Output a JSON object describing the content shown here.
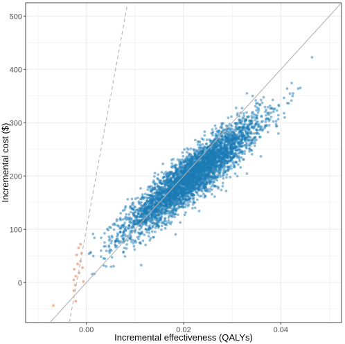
{
  "chart_data": {
    "type": "scatter",
    "title": "",
    "xlabel": "Incremental effectiveness (QALYs)",
    "ylabel": "Incremental cost ($)",
    "xlim": [
      -0.0125,
      0.0525
    ],
    "ylim": [
      -75,
      525
    ],
    "x_ticks": [
      0.0,
      0.02,
      0.04
    ],
    "x_tick_labels": [
      "0.00",
      "0.02",
      "0.04"
    ],
    "y_ticks": [
      0,
      100,
      200,
      300,
      400,
      500
    ],
    "y_tick_labels": [
      "0",
      "100",
      "200",
      "300",
      "400",
      "500"
    ],
    "grid": true,
    "legend": "none",
    "colors": {
      "main_points": "#1b7bb5",
      "dominated_points": "#f4a582",
      "solid_line": "#b3b3b3",
      "dashed_line": "#b3b3b3",
      "grid": "#ebebeb"
    },
    "point_cloud": {
      "count": 4200,
      "x_mean": 0.0218,
      "x_sd": 0.0068,
      "y_intercept": 45,
      "y_slope": 7100,
      "y_noise_sd": 22
    },
    "dominated_points": [
      [
        -0.0068,
        -43
      ],
      [
        -0.0022,
        -35
      ],
      [
        -0.0026,
        -15
      ],
      [
        -0.0023,
        -5
      ],
      [
        -0.0026,
        5
      ],
      [
        -0.0022,
        12
      ],
      [
        -0.0015,
        18
      ],
      [
        -0.0025,
        25
      ],
      [
        -0.0018,
        35
      ],
      [
        -0.0012,
        40
      ],
      [
        -0.002,
        52
      ],
      [
        -0.001,
        55
      ],
      [
        -0.0016,
        65
      ],
      [
        -0.0012,
        72
      ],
      [
        -0.0006,
        2
      ],
      [
        -0.0008,
        28
      ]
    ],
    "reference_lines": [
      {
        "style": "solid",
        "slope": 10000,
        "intercept": 0
      },
      {
        "style": "dashed",
        "slope": 50000,
        "intercept": 100
      }
    ]
  }
}
